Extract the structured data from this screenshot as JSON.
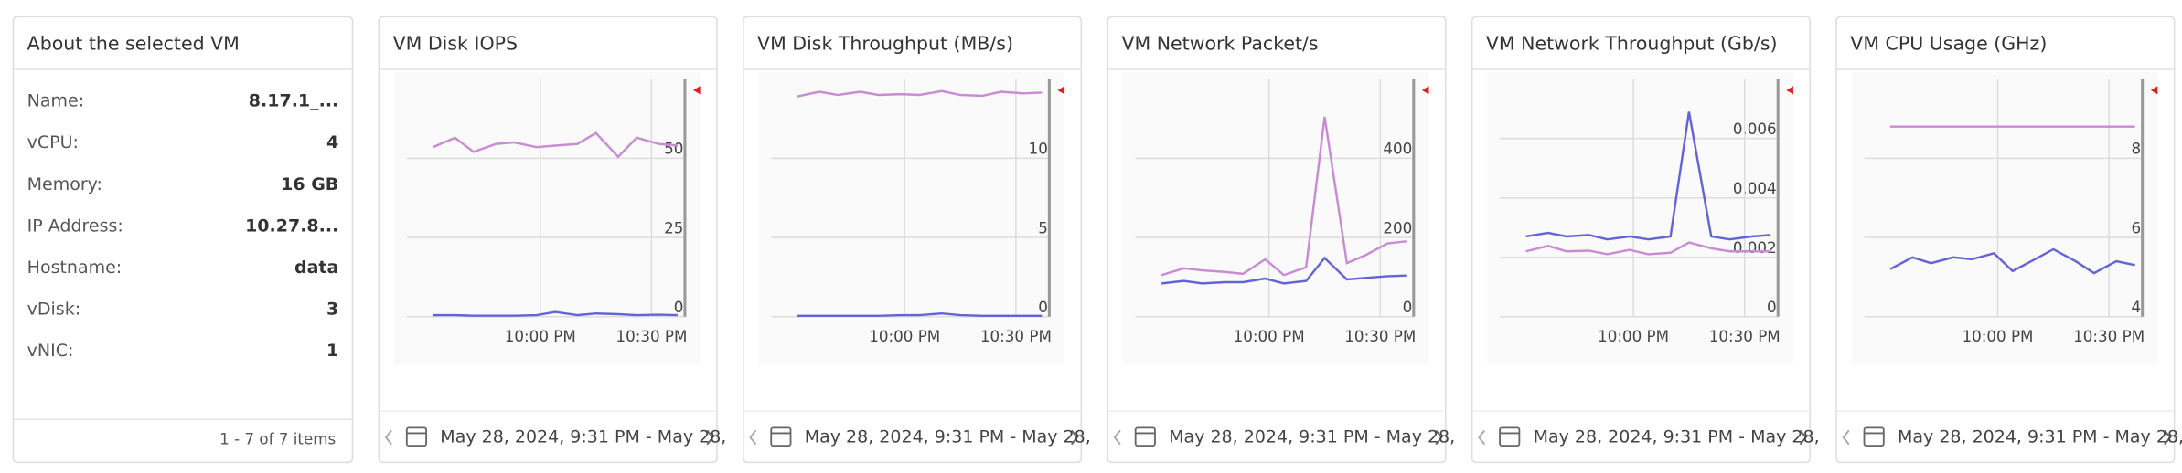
{
  "info_panel": {
    "title": "About the selected VM",
    "rows": [
      {
        "label": "Name:",
        "value": "8.17.1_..."
      },
      {
        "label": "vCPU:",
        "value": "4"
      },
      {
        "label": "Memory:",
        "value": "16 GB"
      },
      {
        "label": "IP Address:",
        "value": "10.27.8..."
      },
      {
        "label": "Hostname:",
        "value": "data"
      },
      {
        "label": "vDisk:",
        "value": "3"
      },
      {
        "label": "vNIC:",
        "value": "1"
      }
    ],
    "footer": "1 - 7 of 7 items"
  },
  "chart_data": [
    {
      "type": "line",
      "title": "VM Disk IOPS",
      "date_range": "May 28, 2024, 9:31 PM - May 28,",
      "x": [
        "9:31 PM",
        "9:37 PM",
        "9:42 PM",
        "9:48 PM",
        "9:53 PM",
        "9:59 PM",
        "10:04 PM",
        "10:10 PM",
        "10:15 PM",
        "10:21 PM",
        "10:26 PM",
        "10:32 PM",
        "10:37 PM"
      ],
      "xlim": [
        "9:24 PM",
        "10:39 PM"
      ],
      "xticks": [
        "10:00 PM",
        "10:30 PM"
      ],
      "ylim": [
        0,
        75
      ],
      "yticks": [
        0,
        25,
        50
      ],
      "grid": true,
      "series": [
        {
          "color": "#c98bd4",
          "values": [
            53.5,
            56.5,
            52,
            54.5,
            55,
            53.5,
            54,
            54.5,
            58,
            50.5,
            56.5,
            54.5,
            54
          ]
        },
        {
          "color": "#6464d6",
          "values": [
            0.5,
            0.5,
            0.3,
            0.3,
            0.3,
            0.5,
            1.5,
            0.5,
            1,
            0.8,
            0.5,
            0.6,
            0.5
          ]
        }
      ]
    },
    {
      "type": "line",
      "title": "VM Disk Throughput (MB/s)",
      "date_range": "May 28, 2024, 9:31 PM - May 28,",
      "x": [
        "9:31 PM",
        "9:37 PM",
        "9:42 PM",
        "9:48 PM",
        "9:53 PM",
        "9:59 PM",
        "10:04 PM",
        "10:10 PM",
        "10:15 PM",
        "10:21 PM",
        "10:26 PM",
        "10:32 PM",
        "10:37 PM"
      ],
      "xlim": [
        "9:24 PM",
        "10:39 PM"
      ],
      "xticks": [
        "10:00 PM",
        "10:30 PM"
      ],
      "ylim": [
        0,
        15
      ],
      "yticks": [
        0,
        5,
        10
      ],
      "grid": true,
      "series": [
        {
          "color": "#c98bd4",
          "values": [
            13.9,
            14.2,
            14.0,
            14.2,
            14.0,
            14.05,
            14.0,
            14.25,
            14.0,
            13.95,
            14.2,
            14.1,
            14.15
          ]
        },
        {
          "color": "#6464d6",
          "values": [
            0.05,
            0.05,
            0.05,
            0.05,
            0.05,
            0.1,
            0.1,
            0.2,
            0.1,
            0.05,
            0.05,
            0.05,
            0.05
          ]
        }
      ]
    },
    {
      "type": "line",
      "title": "VM Network Packet/s",
      "date_range": "May 28, 2024, 9:31 PM - May 28,",
      "x": [
        "9:31 PM",
        "9:37 PM",
        "9:42 PM",
        "9:48 PM",
        "9:53 PM",
        "9:59 PM",
        "10:04 PM",
        "10:10 PM",
        "10:15 PM",
        "10:21 PM",
        "10:26 PM",
        "10:32 PM",
        "10:37 PM"
      ],
      "xlim": [
        "9:24 PM",
        "10:39 PM"
      ],
      "xticks": [
        "10:00 PM",
        "10:30 PM"
      ],
      "ylim": [
        0,
        600
      ],
      "yticks": [
        0,
        200,
        400
      ],
      "grid": true,
      "series": [
        {
          "color": "#c98bd4",
          "values": [
            105,
            122,
            117,
            113,
            108,
            145,
            105,
            125,
            505,
            135,
            155,
            185,
            190
          ]
        },
        {
          "color": "#6464d6",
          "values": [
            84,
            90,
            84,
            87,
            87,
            96,
            84,
            90,
            148,
            94,
            98,
            102,
            104
          ]
        }
      ]
    },
    {
      "type": "line",
      "title": "VM Network Throughput (Gb/s)",
      "date_range": "May 28, 2024, 9:31 PM - May 28,",
      "x": [
        "9:31 PM",
        "9:37 PM",
        "9:42 PM",
        "9:48 PM",
        "9:53 PM",
        "9:59 PM",
        "10:04 PM",
        "10:10 PM",
        "10:15 PM",
        "10:21 PM",
        "10:26 PM",
        "10:32 PM",
        "10:37 PM"
      ],
      "xlim": [
        "9:24 PM",
        "10:39 PM"
      ],
      "xticks": [
        "10:00 PM",
        "10:30 PM"
      ],
      "ylim": [
        0,
        0.008
      ],
      "yticks": [
        0,
        0.002,
        0.004,
        0.006
      ],
      "grid": true,
      "series": [
        {
          "color": "#6464d6",
          "values": [
            0.0027,
            0.00282,
            0.0027,
            0.00275,
            0.0026,
            0.0027,
            0.0026,
            0.0027,
            0.0069,
            0.0027,
            0.0026,
            0.0027,
            0.00275
          ]
        },
        {
          "color": "#c98bd4",
          "values": [
            0.0022,
            0.00238,
            0.0022,
            0.00222,
            0.0021,
            0.00225,
            0.0021,
            0.00215,
            0.0025,
            0.0023,
            0.0022,
            0.0022,
            0.0022
          ]
        }
      ]
    },
    {
      "type": "line",
      "title": "VM CPU Usage (GHz)",
      "date_range": "May 28, 2024, 9:31 PM - May 28,",
      "x": [
        "9:31 PM",
        "9:37 PM",
        "9:42 PM",
        "9:48 PM",
        "9:53 PM",
        "9:59 PM",
        "10:04 PM",
        "10:10 PM",
        "10:15 PM",
        "10:21 PM",
        "10:26 PM",
        "10:32 PM",
        "10:37 PM"
      ],
      "xlim": [
        "9:24 PM",
        "10:39 PM"
      ],
      "xticks": [
        "10:00 PM",
        "10:30 PM"
      ],
      "ylim": [
        4,
        10
      ],
      "yticks": [
        4,
        6,
        8
      ],
      "grid": true,
      "series": [
        {
          "color": "#c98bd4",
          "values": [
            8.8,
            8.8,
            8.8,
            8.8,
            8.8,
            8.8,
            8.8,
            8.8,
            8.8,
            8.8,
            8.8,
            8.8,
            8.8
          ]
        },
        {
          "color": "#6464d6",
          "values": [
            5.2,
            5.5,
            5.35,
            5.5,
            5.45,
            5.6,
            5.15,
            5.45,
            5.7,
            5.4,
            5.1,
            5.4,
            5.3
          ]
        }
      ]
    }
  ]
}
